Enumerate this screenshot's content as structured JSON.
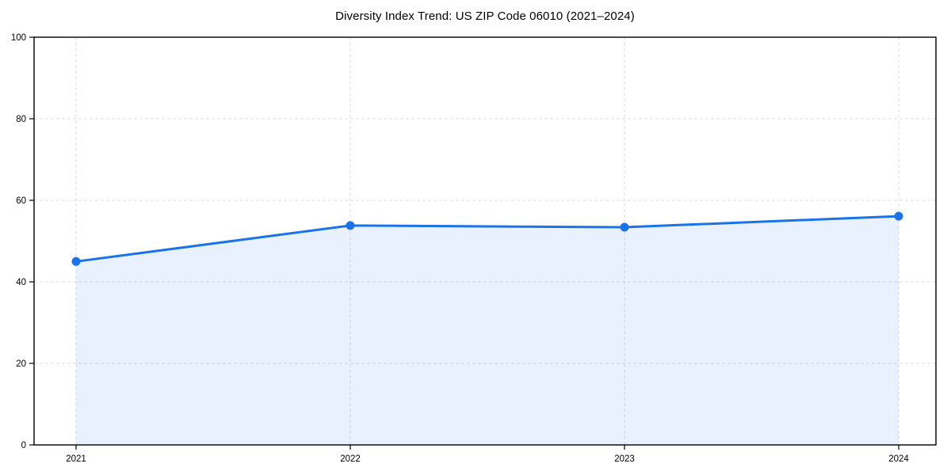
{
  "chart_data": {
    "type": "line",
    "title": "Diversity Index Trend: US ZIP Code 06010 (2021–2024)",
    "x": [
      2021,
      2022,
      2023,
      2024
    ],
    "values": [
      45.0,
      53.8,
      53.4,
      56.1
    ],
    "xticks": [
      "2021",
      "2022",
      "2023",
      "2024"
    ],
    "yticks": [
      0,
      20,
      40,
      60,
      80,
      100
    ],
    "ylim": [
      0,
      100
    ],
    "xlabel": "",
    "ylabel": "",
    "grid": true,
    "grid_style": "dashed",
    "legend": false,
    "marker": "circle",
    "area_fill": true,
    "colors": {
      "line": "#1a73e8",
      "marker": "#1a73e8",
      "fill": "rgba(26,115,232,0.10)",
      "grid": "#dcdcdc",
      "axis": "#000000",
      "text": "#000000",
      "background": "#ffffff"
    }
  }
}
